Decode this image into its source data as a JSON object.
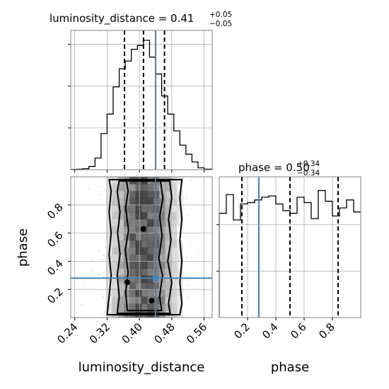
{
  "chart_data": [
    {
      "type": "histogram",
      "panel": "luminosity_distance-marginal",
      "title": {
        "main": "luminosity_distance = 0.41",
        "sup": "+0.05",
        "sub": "−0.05"
      },
      "x_range": [
        0.23,
        0.58
      ],
      "bin_edges": [
        0.23,
        0.245,
        0.26,
        0.275,
        0.29,
        0.305,
        0.32,
        0.335,
        0.35,
        0.365,
        0.38,
        0.395,
        0.41,
        0.425,
        0.44,
        0.455,
        0.47,
        0.485,
        0.5,
        0.515,
        0.53,
        0.545,
        0.56,
        0.58
      ],
      "counts": [
        0.002,
        0.004,
        0.008,
        0.025,
        0.09,
        0.28,
        0.43,
        0.64,
        0.78,
        0.84,
        0.93,
        0.96,
        1.0,
        0.87,
        0.74,
        0.57,
        0.43,
        0.3,
        0.19,
        0.12,
        0.06,
        0.015,
        0.004
      ],
      "quantile_lines": [
        0.363,
        0.41,
        0.462
      ],
      "truth_value": 0.44,
      "grid": true,
      "y_tick_fractions": [
        0.3,
        0.6,
        0.9
      ]
    },
    {
      "type": "histogram",
      "panel": "phase-marginal",
      "title": {
        "main": "phase = 0.50",
        "sup": "+0.34",
        "sub": "−0.34"
      },
      "x_range": [
        0.0,
        1.0
      ],
      "bin_edges": [
        0.0,
        0.05,
        0.1,
        0.15,
        0.2,
        0.25,
        0.3,
        0.35,
        0.4,
        0.45,
        0.5,
        0.55,
        0.6,
        0.65,
        0.7,
        0.75,
        0.8,
        0.85,
        0.9,
        0.95,
        1.0
      ],
      "counts": [
        0.78,
        0.92,
        0.73,
        0.85,
        0.86,
        0.88,
        0.9,
        0.91,
        0.85,
        0.8,
        0.78,
        0.9,
        0.86,
        0.74,
        0.95,
        0.87,
        0.76,
        0.82,
        0.88,
        0.79
      ],
      "quantile_lines": [
        0.16,
        0.5,
        0.84
      ],
      "truth_value": 0.28,
      "grid": true,
      "x_ticks": [
        0.2,
        0.4,
        0.6,
        0.8
      ],
      "x_tick_labels": [
        "0.2",
        "0.4",
        "0.6",
        "0.8"
      ],
      "xlabel": "phase"
    },
    {
      "type": "2d-density",
      "panel": "luminosity_distance-vs-phase",
      "x_range": [
        0.23,
        0.58
      ],
      "y_range": [
        0.0,
        1.0
      ],
      "x_ticks": [
        0.24,
        0.32,
        0.4,
        0.48,
        0.56
      ],
      "x_tick_labels": [
        "0.24",
        "0.32",
        "0.40",
        "0.48",
        "0.56"
      ],
      "y_ticks": [
        0.2,
        0.4,
        0.6,
        0.8
      ],
      "y_tick_labels": [
        "0.2",
        "0.4",
        "0.6",
        "0.8"
      ],
      "xlabel": "luminosity_distance",
      "ylabel": "phase",
      "truth": {
        "x": 0.44,
        "y": 0.28
      },
      "grid": true,
      "contour_levels": [
        {
          "left": [
            [
              0.32,
              0.02
            ],
            [
              0.325,
              0.15
            ],
            [
              0.33,
              0.3
            ],
            [
              0.325,
              0.45
            ],
            [
              0.33,
              0.6
            ],
            [
              0.325,
              0.75
            ],
            [
              0.33,
              0.9
            ],
            [
              0.325,
              0.98
            ]
          ],
          "right": [
            [
              0.505,
              0.98
            ],
            [
              0.5,
              0.85
            ],
            [
              0.505,
              0.7
            ],
            [
              0.5,
              0.55
            ],
            [
              0.505,
              0.4
            ],
            [
              0.5,
              0.25
            ],
            [
              0.505,
              0.1
            ],
            [
              0.5,
              0.02
            ]
          ]
        },
        {
          "left": [
            [
              0.345,
              0.03
            ],
            [
              0.35,
              0.15
            ],
            [
              0.345,
              0.3
            ],
            [
              0.352,
              0.45
            ],
            [
              0.346,
              0.6
            ],
            [
              0.352,
              0.75
            ],
            [
              0.345,
              0.9
            ],
            [
              0.35,
              0.97
            ]
          ],
          "right": [
            [
              0.475,
              0.97
            ],
            [
              0.48,
              0.85
            ],
            [
              0.472,
              0.7
            ],
            [
              0.478,
              0.55
            ],
            [
              0.47,
              0.4
            ],
            [
              0.48,
              0.25
            ],
            [
              0.472,
              0.1
            ],
            [
              0.476,
              0.03
            ]
          ]
        },
        {
          "left": [
            [
              0.37,
              0.05
            ],
            [
              0.366,
              0.18
            ],
            [
              0.372,
              0.32
            ],
            [
              0.365,
              0.48
            ],
            [
              0.373,
              0.62
            ],
            [
              0.366,
              0.78
            ],
            [
              0.372,
              0.9
            ],
            [
              0.368,
              0.97
            ]
          ],
          "right": [
            [
              0.452,
              0.97
            ],
            [
              0.458,
              0.85
            ],
            [
              0.45,
              0.72
            ],
            [
              0.456,
              0.58
            ],
            [
              0.448,
              0.42
            ],
            [
              0.457,
              0.3
            ],
            [
              0.45,
              0.15
            ],
            [
              0.455,
              0.05
            ]
          ]
        }
      ]
    }
  ]
}
